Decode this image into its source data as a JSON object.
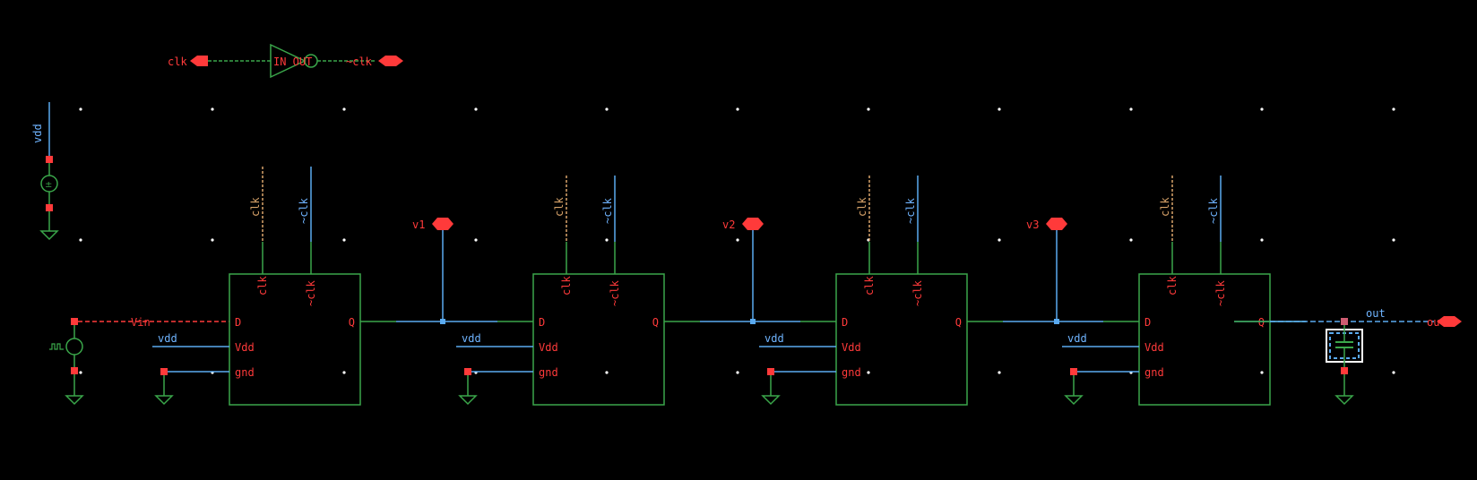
{
  "colors": {
    "background": "#000000",
    "component": "#3aa64a",
    "net_blue": "#5aaaf0",
    "net_green": "#3aa64a",
    "pin_red": "#ff3a3a",
    "clk_tan": "#d9a46a",
    "grid_dot": "#ffffff",
    "selection": "#ffffff"
  },
  "inverter": {
    "in_pin": "clk",
    "out_pin": "~clk",
    "body_label": "IN OUT"
  },
  "vdd_source": {
    "net_label": "vdd"
  },
  "input_source": {
    "net_label": "Vin"
  },
  "flip_flops": [
    {
      "pin_clk": "clk",
      "pin_nclk": "~clk",
      "pin_d": "D",
      "pin_q": "Q",
      "pin_vdd": "Vdd",
      "pin_gnd": "gnd",
      "net_clk": "clk",
      "net_nclk": "~clk",
      "net_vdd": "vdd"
    },
    {
      "pin_clk": "clk",
      "pin_nclk": "~clk",
      "pin_d": "D",
      "pin_q": "Q",
      "pin_vdd": "Vdd",
      "pin_gnd": "gnd",
      "net_clk": "clk",
      "net_nclk": "~clk",
      "net_vdd": "vdd"
    },
    {
      "pin_clk": "clk",
      "pin_nclk": "~clk",
      "pin_d": "D",
      "pin_q": "Q",
      "pin_vdd": "Vdd",
      "pin_gnd": "gnd",
      "net_clk": "clk",
      "net_nclk": "~clk",
      "net_vdd": "vdd"
    },
    {
      "pin_clk": "clk",
      "pin_nclk": "~clk",
      "pin_d": "D",
      "pin_q": "Q",
      "pin_vdd": "Vdd",
      "pin_gnd": "gnd",
      "net_clk": "clk",
      "net_nclk": "~clk",
      "net_vdd": "vdd"
    }
  ],
  "probes": [
    "v1",
    "v2",
    "v3"
  ],
  "output": {
    "net_label": "out",
    "port_label": "out"
  }
}
